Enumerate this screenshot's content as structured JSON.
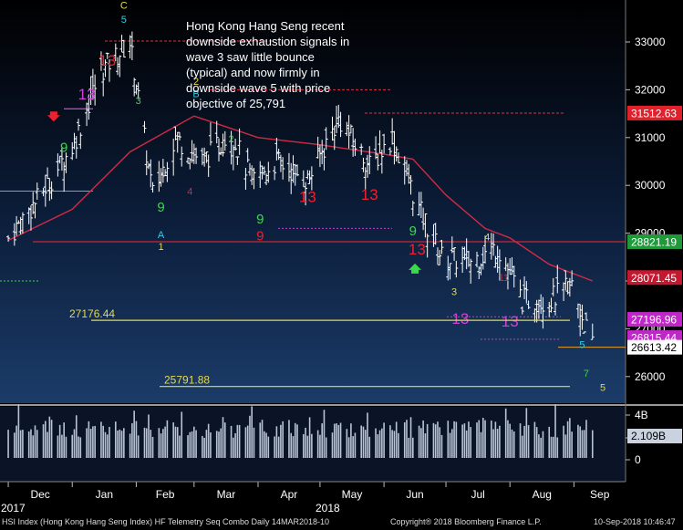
{
  "chart_data": {
    "type": "candlestick",
    "annotation": "Hong Kong Hang Seng recent downside exhaustion signals in wave 3 saw little bounce (typical) and now firmly in downside wave 5 with price objective of 25,791",
    "y_axis": {
      "ticks": [
        26000,
        27000,
        28000,
        29000,
        30000,
        31000,
        32000,
        33000
      ],
      "tick_labels": [
        "26000",
        "27000",
        "28000",
        "29000",
        "30000",
        "31000",
        "32000",
        "33000"
      ],
      "range": [
        25500,
        33800
      ]
    },
    "x_axis": {
      "months": [
        "Dec",
        "Jan",
        "Feb",
        "Mar",
        "Apr",
        "May",
        "Jun",
        "Jul",
        "Aug",
        "Sep"
      ],
      "years": [
        "2017",
        "2018"
      ]
    },
    "price_path": {
      "dates": [
        "2017-12-01",
        "2017-12-15",
        "2018-01-01",
        "2018-01-15",
        "2018-01-29",
        "2018-02-09",
        "2018-02-20",
        "2018-03-05",
        "2018-03-19",
        "2018-03-29",
        "2018-04-10",
        "2018-04-25",
        "2018-05-10",
        "2018-05-25",
        "2018-06-05",
        "2018-06-18",
        "2018-06-29",
        "2018-07-12",
        "2018-07-26",
        "2018-08-07",
        "2018-08-20",
        "2018-08-31",
        "2018-09-10"
      ],
      "close": [
        28900,
        29700,
        30800,
        32400,
        33000,
        29800,
        31000,
        30500,
        31100,
        30100,
        30500,
        30100,
        31400,
        30400,
        31000,
        29500,
        28500,
        28400,
        28700,
        27600,
        27600,
        27900,
        26613
      ]
    },
    "moving_average": {
      "dates": [
        "2017-12-01",
        "2018-01-01",
        "2018-01-29",
        "2018-03-01",
        "2018-04-01",
        "2018-05-01",
        "2018-06-01",
        "2018-06-15",
        "2018-07-01",
        "2018-07-20",
        "2018-08-01",
        "2018-08-20",
        "2018-09-10"
      ],
      "values": [
        28850,
        29500,
        30700,
        31450,
        31000,
        30850,
        30650,
        30550,
        29800,
        29100,
        28900,
        28350,
        28000
      ]
    },
    "volume": {
      "axis_labels": [
        "4B",
        "2B",
        "0"
      ],
      "last_value_label": "2.109B"
    },
    "price_labels": [
      {
        "value": 31512.63,
        "label": "31512.63",
        "color": "#e0202a"
      },
      {
        "value": 28821.19,
        "label": "28821.19",
        "color": "#1f9a3a"
      },
      {
        "value": 28071.45,
        "label": "28071.45",
        "color": "#c41830"
      },
      {
        "value": 27196.96,
        "label": "27196.96",
        "color": "#c026c8"
      },
      {
        "value": 26815.44,
        "label": "26815.44",
        "color": "#c026c8"
      },
      {
        "value": 26613.42,
        "label": "26613.42",
        "color": "#ffffff"
      }
    ],
    "levels": [
      {
        "value": 27176.44,
        "label": "27176.44",
        "color": "#e6d84a"
      },
      {
        "value": 25791.88,
        "label": "25791.88",
        "color": "#e6d84a"
      }
    ],
    "td_markers": [
      {
        "date": "2018-01-26",
        "price": 33700,
        "text": "C",
        "color": "#e6d84a"
      },
      {
        "date": "2018-01-26",
        "price": 33400,
        "text": "5",
        "color": "#2fd0e8"
      },
      {
        "date": "2018-01-18",
        "price": 32500,
        "text": "13",
        "color": "#ee2030"
      },
      {
        "date": "2018-01-08",
        "price": 31800,
        "text": "13",
        "color": "#d040d8"
      },
      {
        "date": "2018-02-02",
        "price": 31700,
        "text": "3",
        "color": "#3bd84a"
      },
      {
        "date": "2017-12-28",
        "price": 30700,
        "text": "9",
        "color": "#3bd84a"
      },
      {
        "date": "2018-02-13",
        "price": 29450,
        "text": "9",
        "color": "#3bd84a"
      },
      {
        "date": "2018-02-13",
        "price": 28900,
        "text": "A",
        "color": "#2fd0e8"
      },
      {
        "date": "2018-02-13",
        "price": 28650,
        "text": "1",
        "color": "#e6d84a"
      },
      {
        "date": "2018-03-02",
        "price": 32100,
        "text": "2",
        "color": "#e6d84a"
      },
      {
        "date": "2018-03-02",
        "price": 31850,
        "text": "B",
        "color": "#2fd0e8"
      },
      {
        "date": "2018-02-27",
        "price": 29800,
        "text": "4",
        "color": "#ee2030"
      },
      {
        "date": "2018-03-19",
        "price": 30900,
        "text": "2",
        "color": "#3bd84a"
      },
      {
        "date": "2018-04-02",
        "price": 29200,
        "text": "9",
        "color": "#3bd84a"
      },
      {
        "date": "2018-04-02",
        "price": 28850,
        "text": "9",
        "color": "#ee2030"
      },
      {
        "date": "2018-04-25",
        "price": 29650,
        "text": "13",
        "color": "#ee2030"
      },
      {
        "date": "2018-05-25",
        "price": 29700,
        "text": "13",
        "color": "#ee2030"
      },
      {
        "date": "2018-06-15",
        "price": 28950,
        "text": "9",
        "color": "#3bd84a"
      },
      {
        "date": "2018-06-17",
        "price": 28550,
        "text": "13",
        "color": "#ee2030"
      },
      {
        "date": "2018-07-05",
        "price": 27700,
        "text": "3",
        "color": "#e6d84a"
      },
      {
        "date": "2018-07-08",
        "price": 27100,
        "text": "13",
        "color": "#d040d8"
      },
      {
        "date": "2018-07-21",
        "price": 28850,
        "text": "4",
        "color": "#e6d84a"
      },
      {
        "date": "2018-07-29",
        "price": 28000,
        "text": "11",
        "color": "#ee2030"
      },
      {
        "date": "2018-08-01",
        "price": 27050,
        "text": "13",
        "color": "#d040d8"
      },
      {
        "date": "2018-09-07",
        "price": 26000,
        "text": "7",
        "color": "#3bd84a"
      },
      {
        "date": "2018-09-05",
        "price": 26600,
        "text": "5",
        "color": "#2fd0e8"
      },
      {
        "date": "2018-09-15",
        "price": 25700,
        "text": "5",
        "color": "#e6d84a"
      }
    ],
    "arrows": [
      {
        "date": "2017-12-23",
        "price": 31450,
        "direction": "down",
        "color": "#ee2030"
      },
      {
        "date": "2018-06-16",
        "price": 28250,
        "direction": "up",
        "color": "#3bd84a"
      }
    ]
  },
  "footer": {
    "left": "HSI Index (Hong Kong Hang Seng Index) HF Telemetry Seq Combo  Daily 14MAR2018-10",
    "center": "Copyright® 2018 Bloomberg Finance L.P.",
    "right": "10-Sep-2018 10:46:47"
  }
}
